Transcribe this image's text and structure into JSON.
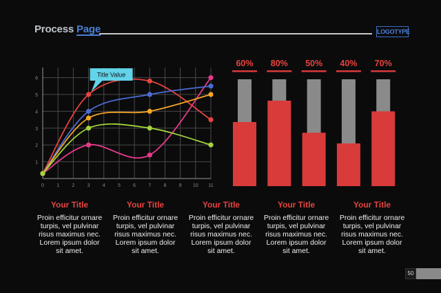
{
  "header": {
    "title_part1": "Process",
    "title_part2": "Page",
    "logo": "LOGOTYPE"
  },
  "chart_data": [
    {
      "type": "line",
      "x": [
        0,
        3,
        7,
        11
      ],
      "xticks": [
        0,
        1,
        2,
        3,
        4,
        5,
        6,
        7,
        8,
        9,
        10,
        11
      ],
      "yticks": [
        1,
        2,
        3,
        4,
        5,
        6
      ],
      "xlim": [
        0,
        11
      ],
      "ylim": [
        0,
        6.6
      ],
      "grid": true,
      "annotation": "Title Value",
      "series": [
        {
          "color": "#e8443f",
          "values": [
            0.3,
            5.0,
            5.8,
            3.5
          ]
        },
        {
          "color": "#e8398a",
          "values": [
            0.3,
            2.0,
            1.4,
            6.0
          ]
        },
        {
          "color": "#4b6cd6",
          "values": [
            0.3,
            4.0,
            5.0,
            5.5
          ]
        },
        {
          "color": "#f5a623",
          "values": [
            0.3,
            3.6,
            4.0,
            5.0
          ]
        },
        {
          "color": "#a4d43a",
          "values": [
            0.3,
            3.0,
            3.0,
            2.0
          ]
        }
      ]
    },
    {
      "type": "bar",
      "categories": [
        "60%",
        "80%",
        "50%",
        "40%",
        "70%"
      ],
      "values": [
        60,
        80,
        50,
        40,
        70
      ],
      "ylim": [
        0,
        100
      ],
      "bar_color": "#d93a3a",
      "track_color": "#8a8a8a"
    }
  ],
  "columns": [
    {
      "title": "Your Title",
      "text": "Proin efficitur ornare turpis, vel pulvinar risus maximus nec. Lorem ipsum dolor sit amet."
    },
    {
      "title": "Your Title",
      "text": "Proin efficitur ornare turpis, vel pulvinar risus maximus nec. Lorem ipsum dolor sit amet."
    },
    {
      "title": "Your Title",
      "text": "Proin efficitur ornare turpis, vel pulvinar risus maximus nec. Lorem ipsum dolor sit amet."
    },
    {
      "title": "Your Title",
      "text": "Proin efficitur ornare turpis, vel pulvinar risus maximus nec. Lorem ipsum dolor sit amet."
    },
    {
      "title": "Your Title",
      "text": "Proin efficitur ornare turpis, vel pulvinar risus maximus nec. Lorem ipsum dolor sit amet."
    }
  ],
  "footer": {
    "page_number": "50"
  }
}
